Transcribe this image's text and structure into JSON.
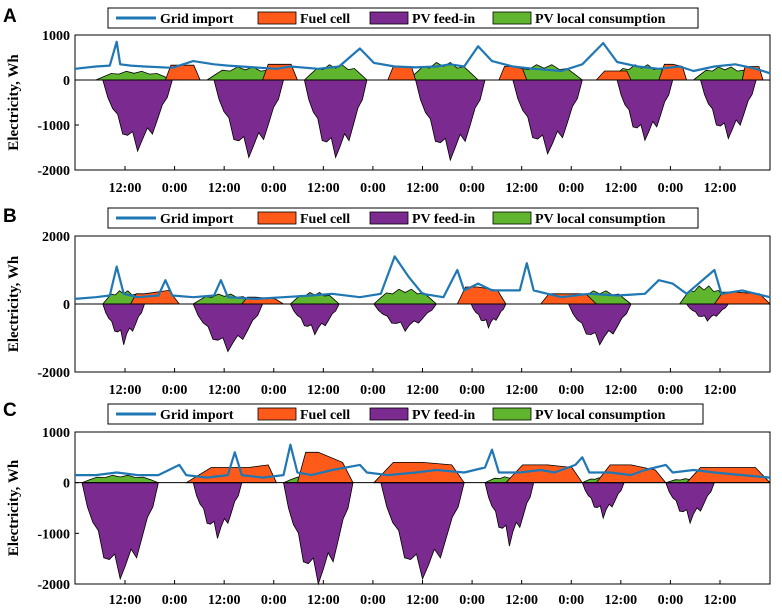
{
  "chart_data": [
    {
      "panel": "A",
      "type": "area",
      "ylabel": "Electricity, Wh",
      "ylim": [
        -2000,
        1000
      ],
      "yticks": [
        -2000,
        -1000,
        0,
        1000
      ],
      "xlabels": [
        "12:00",
        "0:00",
        "12:00",
        "0:00",
        "12:00",
        "0:00",
        "12:00",
        "0:00",
        "12:00",
        "0:00",
        "12:00",
        "0:00",
        "12:00"
      ],
      "legend": [
        "Grid import",
        "Fuel cell",
        "PV feed-in",
        "PV local consumption"
      ],
      "series": {
        "grid_import": [
          [
            0.0,
            250
          ],
          [
            0.03,
            300
          ],
          [
            0.05,
            320
          ],
          [
            0.06,
            850
          ],
          [
            0.065,
            350
          ],
          [
            0.08,
            320
          ],
          [
            0.1,
            300
          ],
          [
            0.14,
            270
          ],
          [
            0.17,
            420
          ],
          [
            0.2,
            350
          ],
          [
            0.22,
            320
          ],
          [
            0.25,
            290
          ],
          [
            0.29,
            250
          ],
          [
            0.31,
            300
          ],
          [
            0.35,
            250
          ],
          [
            0.38,
            300
          ],
          [
            0.41,
            700
          ],
          [
            0.43,
            380
          ],
          [
            0.46,
            300
          ],
          [
            0.49,
            280
          ],
          [
            0.52,
            300
          ],
          [
            0.54,
            350
          ],
          [
            0.56,
            300
          ],
          [
            0.58,
            750
          ],
          [
            0.6,
            420
          ],
          [
            0.63,
            300
          ],
          [
            0.66,
            250
          ],
          [
            0.7,
            200
          ],
          [
            0.73,
            350
          ],
          [
            0.76,
            820
          ],
          [
            0.78,
            400
          ],
          [
            0.81,
            300
          ],
          [
            0.84,
            250
          ],
          [
            0.87,
            300
          ],
          [
            0.89,
            200
          ],
          [
            0.92,
            300
          ],
          [
            0.95,
            350
          ],
          [
            0.98,
            250
          ],
          [
            1.0,
            150
          ]
        ],
        "fuel_cell": [
          [
            [
              0.13,
              0.15,
              0.18
            ],
            [
              0,
              330,
              330,
              0
            ]
          ],
          [
            [
              0.27,
              0.29,
              0.32
            ],
            [
              0,
              350,
              350,
              0
            ]
          ],
          [
            [
              0.45,
              0.47,
              0.49
            ],
            [
              0,
              300,
              300,
              0
            ]
          ],
          [
            [
              0.61,
              0.63,
              0.65
            ],
            [
              0,
              300,
              250,
              0
            ]
          ],
          [
            [
              0.75,
              0.78,
              0.8
            ],
            [
              0,
              200,
              200,
              0
            ]
          ],
          [
            [
              0.84,
              0.86,
              0.88
            ],
            [
              0,
              350,
              300,
              0
            ]
          ],
          [
            [
              0.96,
              0.97,
              0.99
            ],
            [
              0,
              300,
              300,
              0
            ]
          ]
        ],
        "pv_feed_in": [
          [
            [
              0.04,
              0.09,
              0.14
            ],
            [
              -1500,
              -1580
            ]
          ],
          [
            [
              0.2,
              0.25,
              0.3
            ],
            [
              -1650,
              -1720
            ]
          ],
          [
            [
              0.33,
              0.38,
              0.42
            ],
            [
              -1680,
              -1720
            ]
          ],
          [
            [
              0.49,
              0.54,
              0.59
            ],
            [
              -1700,
              -1780
            ]
          ],
          [
            [
              0.63,
              0.68,
              0.73
            ],
            [
              -1600,
              -1640
            ]
          ],
          [
            [
              0.78,
              0.82,
              0.86
            ],
            [
              -1300,
              -1340
            ]
          ],
          [
            [
              0.9,
              0.94,
              0.98
            ],
            [
              -1250,
              -1300
            ]
          ]
        ],
        "pv_local": [
          [
            0.03,
            0.14,
            200
          ],
          [
            0.19,
            0.3,
            300
          ],
          [
            0.33,
            0.42,
            350
          ],
          [
            0.48,
            0.58,
            400
          ],
          [
            0.62,
            0.73,
            350
          ],
          [
            0.77,
            0.86,
            350
          ],
          [
            0.89,
            0.98,
            300
          ]
        ]
      }
    },
    {
      "panel": "B",
      "type": "area",
      "ylabel": "Electricity, Wh",
      "ylim": [
        -2000,
        2000
      ],
      "yticks": [
        -2000,
        0,
        2000
      ],
      "xlabels": [
        "12:00",
        "0:00",
        "12:00",
        "0:00",
        "12:00",
        "0:00",
        "12:00",
        "0:00",
        "12:00",
        "0:00",
        "12:00",
        "0:00",
        "12:00"
      ],
      "legend": [
        "Grid import",
        "Fuel cell",
        "PV feed-in",
        "PV local consumption"
      ],
      "series": {
        "grid_import": [
          [
            0.0,
            150
          ],
          [
            0.03,
            200
          ],
          [
            0.05,
            250
          ],
          [
            0.06,
            1100
          ],
          [
            0.07,
            300
          ],
          [
            0.09,
            200
          ],
          [
            0.12,
            250
          ],
          [
            0.13,
            700
          ],
          [
            0.14,
            250
          ],
          [
            0.17,
            200
          ],
          [
            0.2,
            250
          ],
          [
            0.21,
            700
          ],
          [
            0.22,
            200
          ],
          [
            0.26,
            150
          ],
          [
            0.3,
            200
          ],
          [
            0.34,
            250
          ],
          [
            0.37,
            300
          ],
          [
            0.41,
            200
          ],
          [
            0.44,
            300
          ],
          [
            0.46,
            1400
          ],
          [
            0.48,
            800
          ],
          [
            0.5,
            300
          ],
          [
            0.53,
            200
          ],
          [
            0.55,
            1000
          ],
          [
            0.56,
            400
          ],
          [
            0.58,
            600
          ],
          [
            0.6,
            400
          ],
          [
            0.64,
            400
          ],
          [
            0.65,
            1200
          ],
          [
            0.66,
            400
          ],
          [
            0.7,
            200
          ],
          [
            0.74,
            300
          ],
          [
            0.78,
            250
          ],
          [
            0.82,
            300
          ],
          [
            0.84,
            700
          ],
          [
            0.86,
            600
          ],
          [
            0.88,
            300
          ],
          [
            0.92,
            1000
          ],
          [
            0.93,
            300
          ],
          [
            0.96,
            400
          ],
          [
            1.0,
            200
          ]
        ],
        "fuel_cell": [
          [
            [
              0.08,
              0.1,
              0.15
            ],
            [
              0,
              300,
              400,
              0
            ]
          ],
          [
            [
              0.24,
              0.26,
              0.3
            ],
            [
              0,
              200,
              150,
              0
            ]
          ],
          [
            [
              0.55,
              0.58,
              0.62
            ],
            [
              0,
              500,
              400,
              0
            ]
          ],
          [
            [
              0.67,
              0.7,
              0.75
            ],
            [
              0,
              300,
              300,
              0
            ]
          ],
          [
            [
              0.92,
              0.95,
              1.0
            ],
            [
              0,
              350,
              300,
              0
            ]
          ]
        ],
        "pv_feed_in": [
          [
            [
              0.04,
              0.07,
              0.1
            ],
            [
              -1000,
              -1200
            ]
          ],
          [
            [
              0.17,
              0.22,
              0.27
            ],
            [
              -1300,
              -1400
            ]
          ],
          [
            [
              0.31,
              0.35,
              0.38
            ],
            [
              -800,
              -900
            ]
          ],
          [
            [
              0.43,
              0.47,
              0.52
            ],
            [
              -700,
              -800
            ]
          ],
          [
            [
              0.57,
              0.59,
              0.62
            ],
            [
              -600,
              -700
            ]
          ],
          [
            [
              0.71,
              0.76,
              0.8
            ],
            [
              -1100,
              -1200
            ]
          ],
          [
            [
              0.88,
              0.9,
              0.94
            ],
            [
              -450,
              -500
            ]
          ]
        ],
        "pv_local": [
          [
            0.04,
            0.1,
            400
          ],
          [
            0.17,
            0.26,
            300
          ],
          [
            0.31,
            0.38,
            350
          ],
          [
            0.43,
            0.52,
            450
          ],
          [
            0.56,
            0.62,
            400
          ],
          [
            0.71,
            0.8,
            400
          ],
          [
            0.87,
            0.94,
            550
          ]
        ]
      }
    },
    {
      "panel": "C",
      "type": "area",
      "ylabel": "Electricity, Wh",
      "ylim": [
        -2000,
        1000
      ],
      "yticks": [
        -2000,
        -1000,
        0,
        1000
      ],
      "xlabels": [
        "12:00",
        "0:00",
        "12:00",
        "0:00",
        "12:00",
        "0:00",
        "12:00",
        "0:00",
        "12:00",
        "0:00",
        "12:00",
        "0:00",
        "12:00"
      ],
      "legend": [
        "Grid import",
        "Fuel cell",
        "PV feed-in",
        "PV local consumption"
      ],
      "series": {
        "grid_import": [
          [
            0.0,
            150
          ],
          [
            0.03,
            150
          ],
          [
            0.06,
            200
          ],
          [
            0.09,
            150
          ],
          [
            0.12,
            150
          ],
          [
            0.15,
            350
          ],
          [
            0.16,
            150
          ],
          [
            0.19,
            100
          ],
          [
            0.22,
            150
          ],
          [
            0.23,
            600
          ],
          [
            0.24,
            150
          ],
          [
            0.27,
            100
          ],
          [
            0.3,
            150
          ],
          [
            0.31,
            750
          ],
          [
            0.32,
            200
          ],
          [
            0.34,
            150
          ],
          [
            0.37,
            250
          ],
          [
            0.41,
            350
          ],
          [
            0.42,
            200
          ],
          [
            0.45,
            150
          ],
          [
            0.49,
            200
          ],
          [
            0.52,
            250
          ],
          [
            0.56,
            200
          ],
          [
            0.59,
            300
          ],
          [
            0.6,
            650
          ],
          [
            0.61,
            200
          ],
          [
            0.64,
            200
          ],
          [
            0.67,
            250
          ],
          [
            0.69,
            200
          ],
          [
            0.72,
            350
          ],
          [
            0.73,
            500
          ],
          [
            0.74,
            200
          ],
          [
            0.77,
            200
          ],
          [
            0.8,
            150
          ],
          [
            0.82,
            250
          ],
          [
            0.85,
            350
          ],
          [
            0.86,
            200
          ],
          [
            0.89,
            250
          ],
          [
            0.92,
            200
          ],
          [
            0.96,
            150
          ],
          [
            1.0,
            100
          ]
        ],
        "fuel_cell": [
          [
            [
              0.16,
              0.25,
              0.29
            ],
            [
              0,
              300,
              350,
              0
            ]
          ],
          [
            [
              0.32,
              0.35,
              0.4
            ],
            [
              0,
              600,
              400,
              0
            ]
          ],
          [
            [
              0.43,
              0.5,
              0.56
            ],
            [
              0,
              400,
              350,
              0
            ]
          ],
          [
            [
              0.62,
              0.68,
              0.73
            ],
            [
              0,
              350,
              300,
              0
            ]
          ],
          [
            [
              0.75,
              0.8,
              0.85
            ],
            [
              0,
              350,
              250,
              0
            ]
          ],
          [
            [
              0.88,
              0.93,
              1.0
            ],
            [
              0,
              300,
              300,
              0
            ]
          ]
        ],
        "pv_feed_in": [
          [
            [
              0.01,
              0.07,
              0.12
            ],
            [
              -1850,
              -1900
            ]
          ],
          [
            [
              0.17,
              0.21,
              0.24
            ],
            [
              -1000,
              -1100
            ]
          ],
          [
            [
              0.3,
              0.35,
              0.4
            ],
            [
              -1950,
              -2000
            ]
          ],
          [
            [
              0.44,
              0.5,
              0.56
            ],
            [
              -1850,
              -1900
            ]
          ],
          [
            [
              0.59,
              0.62,
              0.66
            ],
            [
              -1100,
              -1250
            ]
          ],
          [
            [
              0.73,
              0.76,
              0.79
            ],
            [
              -600,
              -700
            ]
          ],
          [
            [
              0.85,
              0.88,
              0.92
            ],
            [
              -700,
              -800
            ]
          ]
        ],
        "pv_local": [
          [
            0.01,
            0.12,
            150
          ],
          [
            0.17,
            0.24,
            100
          ],
          [
            0.3,
            0.4,
            150
          ],
          [
            0.44,
            0.56,
            100
          ],
          [
            0.59,
            0.66,
            120
          ],
          [
            0.73,
            0.79,
            100
          ],
          [
            0.85,
            0.92,
            80
          ]
        ]
      }
    }
  ],
  "panels": [
    {
      "letter": "A"
    },
    {
      "letter": "B"
    },
    {
      "letter": "C"
    }
  ],
  "colors": {
    "grid_import": "#1f77b4",
    "fuel_cell": "#ff5a1a",
    "pv_feed_in": "#7b2a8f",
    "pv_local": "#5fb52e"
  }
}
